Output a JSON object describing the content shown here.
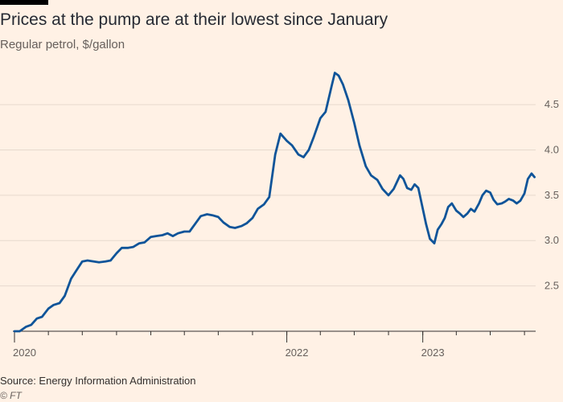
{
  "header": {
    "title": "Prices at the pump are at their lowest since January",
    "subtitle": "Regular petrol, $/gallon"
  },
  "footer": {
    "source": "Source: Energy Information Administration",
    "credit": "© FT"
  },
  "colors": {
    "background": "#fff1e5",
    "line": "#0f5499",
    "grid": "#e6d9ce"
  },
  "chart_data": {
    "type": "line",
    "title": "Prices at the pump are at their lowest since January",
    "subtitle": "Regular petrol, $/gallon",
    "xlabel": "",
    "ylabel": "",
    "x_axis": {
      "type": "date",
      "range": [
        "2020-01-01",
        "2023-10-31"
      ],
      "ticks": [
        {
          "value": "2020-01-01",
          "label": "2020"
        },
        {
          "value": "2022-01-01",
          "label": "2022"
        },
        {
          "value": "2023-01-01",
          "label": "2023"
        }
      ]
    },
    "y_axis": {
      "range": [
        2.0,
        4.9
      ],
      "position": "right",
      "ticks": [
        {
          "value": 2.5,
          "label": "2.5"
        },
        {
          "value": 3.0,
          "label": "3.0"
        },
        {
          "value": 3.5,
          "label": "3.5"
        },
        {
          "value": 4.0,
          "label": "4.0"
        },
        {
          "value": 4.5,
          "label": "4.5"
        }
      ]
    },
    "grid": true,
    "legend": "none",
    "series": [
      {
        "points": [
          [
            "2020-01-01",
            2.0
          ],
          [
            "2020-01-15",
            2.0
          ],
          [
            "2020-02-01",
            2.05
          ],
          [
            "2020-02-15",
            2.07
          ],
          [
            "2020-03-01",
            2.14
          ],
          [
            "2020-03-15",
            2.16
          ],
          [
            "2020-04-01",
            2.25
          ],
          [
            "2020-04-15",
            2.29
          ],
          [
            "2020-05-01",
            2.31
          ],
          [
            "2020-05-15",
            2.39
          ],
          [
            "2020-06-01",
            2.58
          ],
          [
            "2020-06-15",
            2.67
          ],
          [
            "2020-07-01",
            2.77
          ],
          [
            "2020-07-15",
            2.78
          ],
          [
            "2020-08-01",
            2.77
          ],
          [
            "2020-08-15",
            2.76
          ],
          [
            "2020-09-01",
            2.77
          ],
          [
            "2020-09-15",
            2.78
          ],
          [
            "2020-10-01",
            2.86
          ],
          [
            "2020-10-15",
            2.92
          ],
          [
            "2020-11-01",
            2.92
          ],
          [
            "2020-11-15",
            2.93
          ],
          [
            "2020-12-01",
            2.97
          ],
          [
            "2020-12-15",
            2.98
          ],
          [
            "2021-01-01",
            3.04
          ],
          [
            "2021-01-15",
            3.05
          ],
          [
            "2021-02-01",
            3.06
          ],
          [
            "2021-02-15",
            3.08
          ],
          [
            "2021-03-01",
            3.05
          ],
          [
            "2021-03-15",
            3.08
          ],
          [
            "2021-04-01",
            3.1
          ],
          [
            "2021-04-15",
            3.1
          ],
          [
            "2021-05-01",
            3.19
          ],
          [
            "2021-05-15",
            3.27
          ],
          [
            "2021-06-01",
            3.29
          ],
          [
            "2021-06-15",
            3.28
          ],
          [
            "2021-07-01",
            3.26
          ],
          [
            "2021-07-15",
            3.2
          ],
          [
            "2021-08-01",
            3.15
          ],
          [
            "2021-08-15",
            3.14
          ],
          [
            "2021-09-01",
            3.16
          ],
          [
            "2021-09-15",
            3.19
          ],
          [
            "2021-10-01",
            3.25
          ],
          [
            "2021-10-15",
            3.35
          ],
          [
            "2021-11-01",
            3.4
          ],
          [
            "2021-11-15",
            3.48
          ],
          [
            "2021-12-01",
            3.95
          ],
          [
            "2021-12-15",
            4.18
          ],
          [
            "2022-01-01",
            4.1
          ],
          [
            "2022-01-15",
            4.05
          ],
          [
            "2022-02-01",
            3.95
          ],
          [
            "2022-02-15",
            3.92
          ],
          [
            "2022-03-01",
            4.0
          ],
          [
            "2022-03-15",
            4.15
          ],
          [
            "2022-04-01",
            4.35
          ],
          [
            "2022-04-15",
            4.42
          ],
          [
            "2022-05-01",
            4.7
          ],
          [
            "2022-05-10",
            4.85
          ],
          [
            "2022-05-20",
            4.82
          ],
          [
            "2022-06-01",
            4.72
          ],
          [
            "2022-06-15",
            4.55
          ],
          [
            "2022-07-01",
            4.3
          ],
          [
            "2022-07-15",
            4.05
          ],
          [
            "2022-08-01",
            3.82
          ],
          [
            "2022-08-15",
            3.72
          ],
          [
            "2022-09-01",
            3.67
          ],
          [
            "2022-09-15",
            3.57
          ],
          [
            "2022-10-01",
            3.5
          ],
          [
            "2022-10-15",
            3.57
          ],
          [
            "2022-11-01",
            3.72
          ],
          [
            "2022-11-10",
            3.68
          ],
          [
            "2022-11-20",
            3.58
          ],
          [
            "2022-12-01",
            3.56
          ],
          [
            "2022-12-10",
            3.62
          ],
          [
            "2022-12-20",
            3.58
          ],
          [
            "2023-01-01",
            3.35
          ],
          [
            "2023-01-10",
            3.18
          ],
          [
            "2023-01-20",
            3.02
          ],
          [
            "2023-02-01",
            2.97
          ],
          [
            "2023-02-10",
            3.12
          ],
          [
            "2023-02-20",
            3.18
          ],
          [
            "2023-03-01",
            3.25
          ],
          [
            "2023-03-10",
            3.37
          ],
          [
            "2023-03-20",
            3.41
          ],
          [
            "2023-04-01",
            3.33
          ],
          [
            "2023-04-10",
            3.3
          ],
          [
            "2023-04-20",
            3.26
          ],
          [
            "2023-05-01",
            3.3
          ],
          [
            "2023-05-10",
            3.35
          ],
          [
            "2023-05-20",
            3.32
          ],
          [
            "2023-06-01",
            3.41
          ],
          [
            "2023-06-10",
            3.5
          ],
          [
            "2023-06-20",
            3.55
          ],
          [
            "2023-07-01",
            3.53
          ],
          [
            "2023-07-10",
            3.45
          ],
          [
            "2023-07-20",
            3.4
          ],
          [
            "2023-08-01",
            3.41
          ],
          [
            "2023-08-10",
            3.43
          ],
          [
            "2023-08-20",
            3.46
          ],
          [
            "2023-09-01",
            3.44
          ],
          [
            "2023-09-10",
            3.41
          ],
          [
            "2023-09-20",
            3.44
          ],
          [
            "2023-10-01",
            3.52
          ],
          [
            "2023-10-10",
            3.68
          ],
          [
            "2023-10-20",
            3.74
          ],
          [
            "2023-10-28",
            3.7
          ]
        ]
      }
    ]
  }
}
